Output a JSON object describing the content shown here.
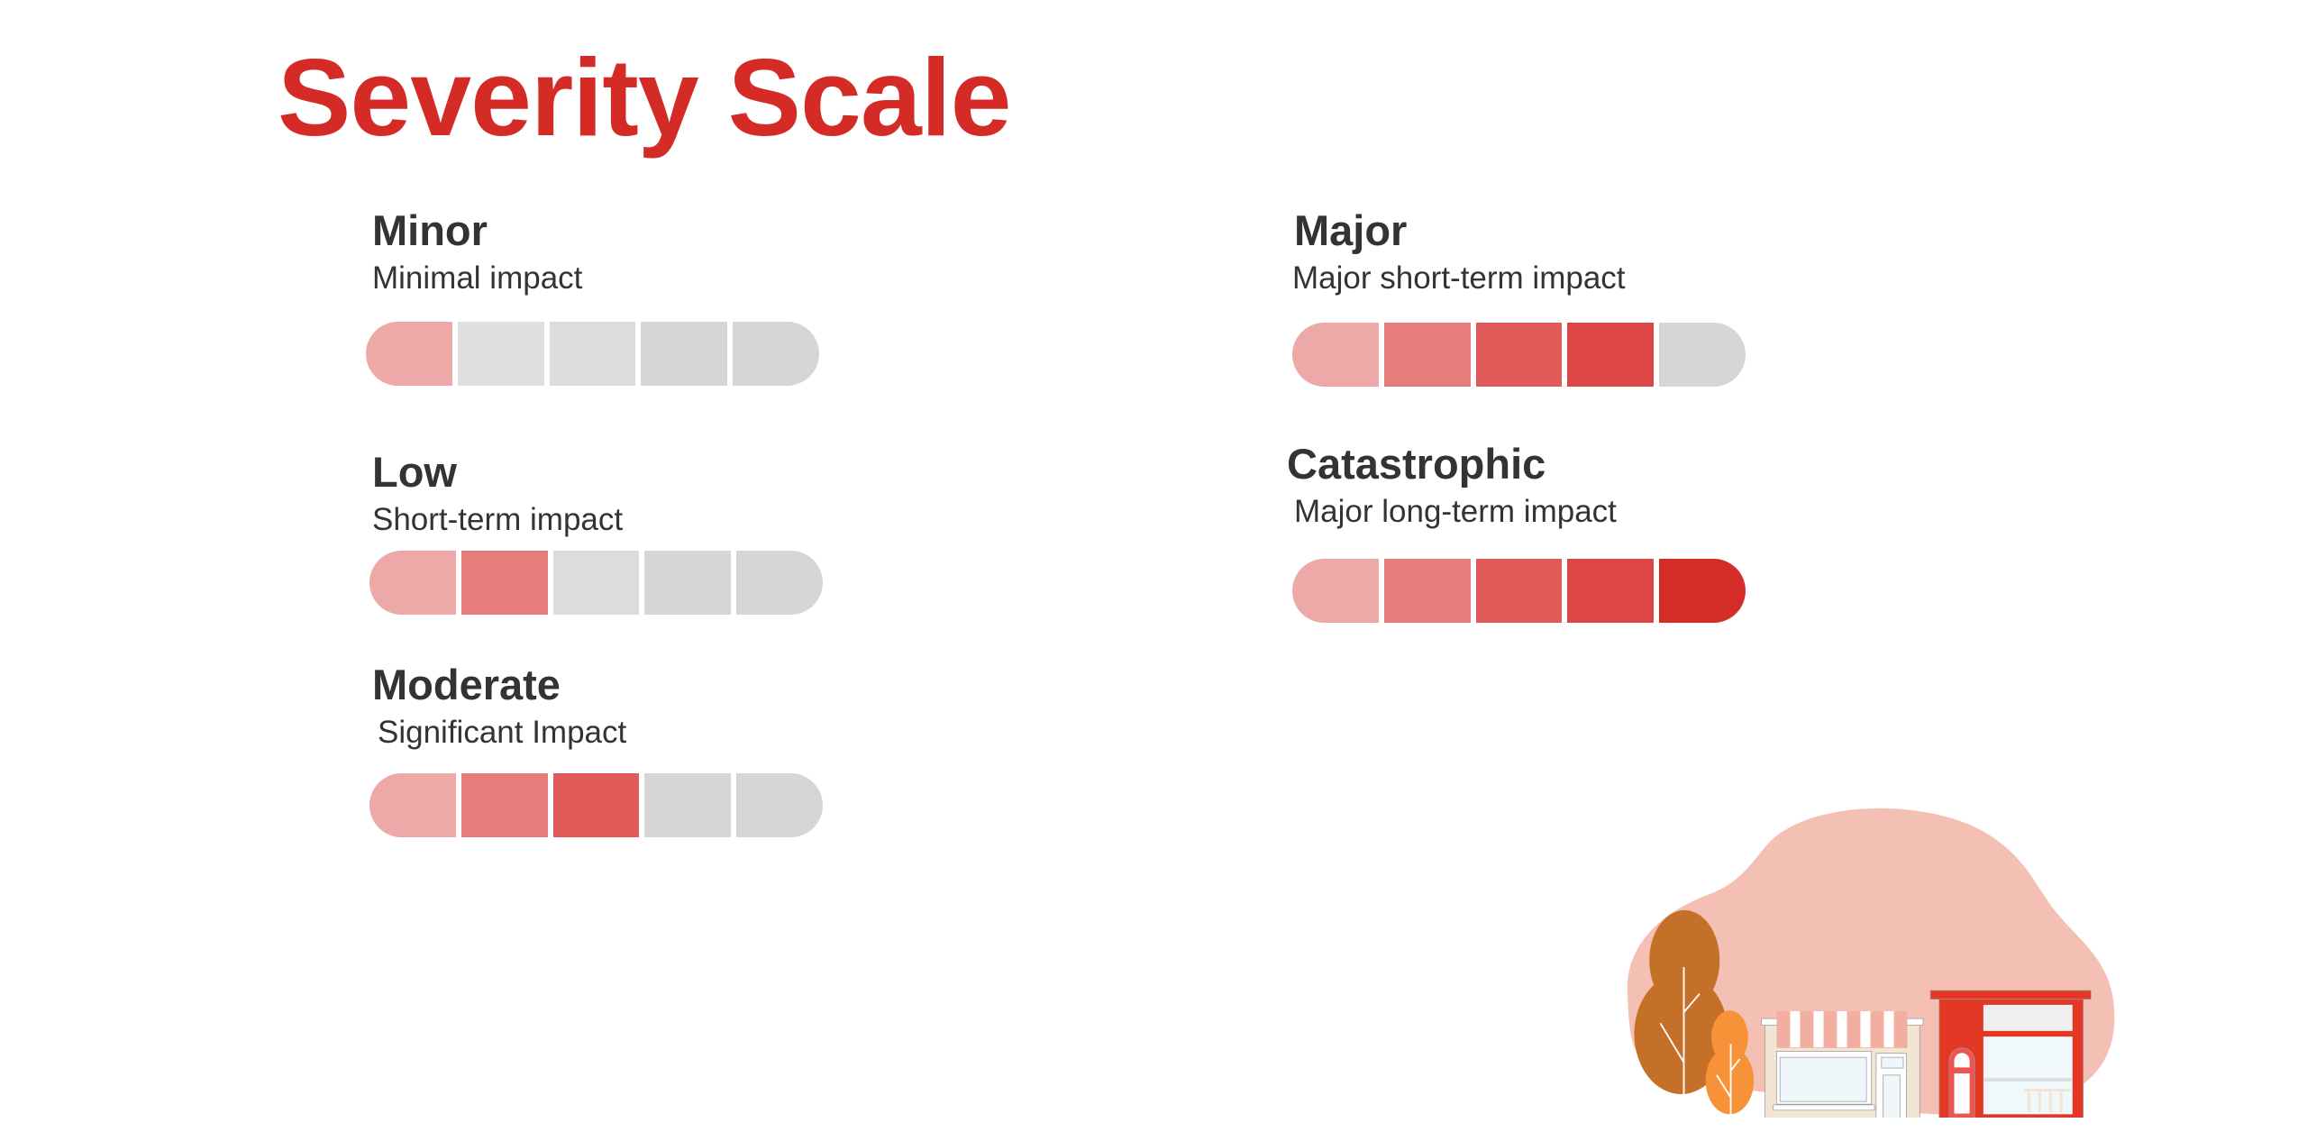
{
  "title": "Severity Scale",
  "colors": {
    "filled": [
      "#eda8a8",
      "#e67c7c",
      "#e05a5a",
      "#dc4646",
      "#d42d27"
    ],
    "empty": [
      "#e6e6e6",
      "#dfdfdf",
      "#dcdcdc",
      "#d6d6d6",
      "#d6d6d6"
    ]
  },
  "levels": [
    {
      "name": "Minor",
      "description": "Minimal impact",
      "filled": 1,
      "total": 5
    },
    {
      "name": "Low",
      "description": "Short-term impact",
      "filled": 2,
      "total": 5
    },
    {
      "name": "Moderate",
      "description": "Significant Impact",
      "filled": 3,
      "total": 5
    },
    {
      "name": "Major",
      "description": "Major short-term impact",
      "filled": 4,
      "total": 5
    },
    {
      "name": "Catastrophic",
      "description": "Major long-term impact",
      "filled": 5,
      "total": 5
    }
  ]
}
